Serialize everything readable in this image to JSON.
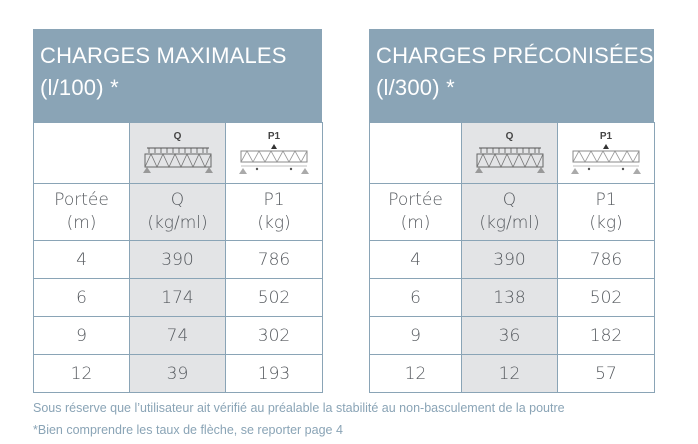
{
  "tables": [
    {
      "title_line1": "CHARGES MAXIMALES",
      "title_line2": "(l/100) *",
      "icon_q_label": "Q",
      "icon_p_label": "P1",
      "col1": [
        "Portée",
        "(m)"
      ],
      "col2": [
        "Q",
        "(kg/ml)"
      ],
      "col3": [
        "P1",
        "(kg)"
      ],
      "rows": [
        [
          "4",
          "390",
          "786"
        ],
        [
          "6",
          "174",
          "502"
        ],
        [
          "9",
          "74",
          "302"
        ],
        [
          "12",
          "39",
          "193"
        ]
      ]
    },
    {
      "title_line1": "CHARGES PRÉCONISÉES",
      "title_line2": "(l/300) *",
      "icon_q_label": "Q",
      "icon_p_label": "P1",
      "col1": [
        "Portée",
        "(m)"
      ],
      "col2": [
        "Q",
        "(kg/ml)"
      ],
      "col3": [
        "P1",
        "(kg)"
      ],
      "rows": [
        [
          "4",
          "390",
          "786"
        ],
        [
          "6",
          "138",
          "502"
        ],
        [
          "9",
          "36",
          "182"
        ],
        [
          "12",
          "12",
          "57"
        ]
      ]
    }
  ],
  "footer": {
    "line1": "Sous réserve que l’utilisateur ait vérifié au préalable la stabilité au non-basculement de la poutre",
    "line2": "*Bien comprendre les taux de flèche, se reporter page 4"
  },
  "colors": {
    "header_bg": "#8aa4b6",
    "shaded_col": "#e3e4e6",
    "footer_text": "#8aa4b6"
  }
}
